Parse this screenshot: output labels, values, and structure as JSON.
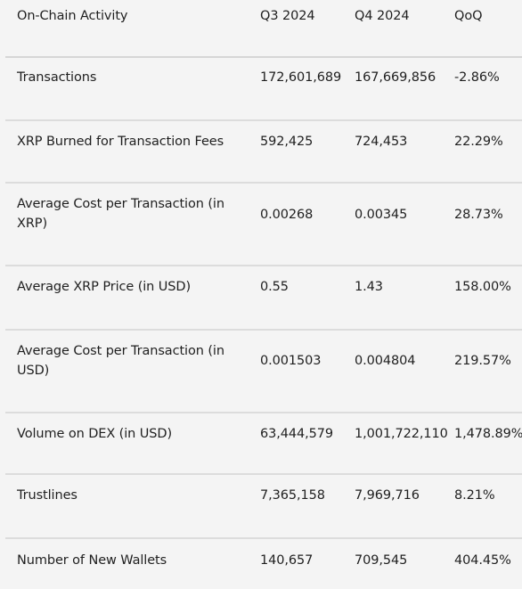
{
  "columns": [
    "On-Chain Activity",
    "Q3 2024",
    "Q4 2024",
    "QoQ"
  ],
  "rows": [
    {
      "metric": "Transactions",
      "q3": "172,601,689",
      "q4": "167,669,856",
      "qoq": "-2.86%"
    },
    {
      "metric": "XRP Burned for Transaction Fees",
      "q3": "592,425",
      "q4": "724,453",
      "qoq": "22.29%"
    },
    {
      "metric": "Average Cost per Transaction (in XRP)",
      "q3": "0.00268",
      "q4": "0.00345",
      "qoq": "28.73%"
    },
    {
      "metric": "Average XRP Price (in USD)",
      "q3": "0.55",
      "q4": "1.43",
      "qoq": "158.00%"
    },
    {
      "metric": "Average Cost per Transaction (in USD)",
      "q3": "0.001503",
      "q4": "0.004804",
      "qoq": "219.57%"
    },
    {
      "metric": "Volume on DEX (in USD)",
      "q3": "63,444,579",
      "q4": "1,001,722,110",
      "qoq": "1,478.89%"
    },
    {
      "metric": "Trustlines",
      "q3": "7,365,158",
      "q4": "7,969,716",
      "qoq": "8.21%"
    },
    {
      "metric": "Number of New Wallets",
      "q3": "140,657",
      "q4": "709,545",
      "qoq": "404.45%"
    }
  ]
}
